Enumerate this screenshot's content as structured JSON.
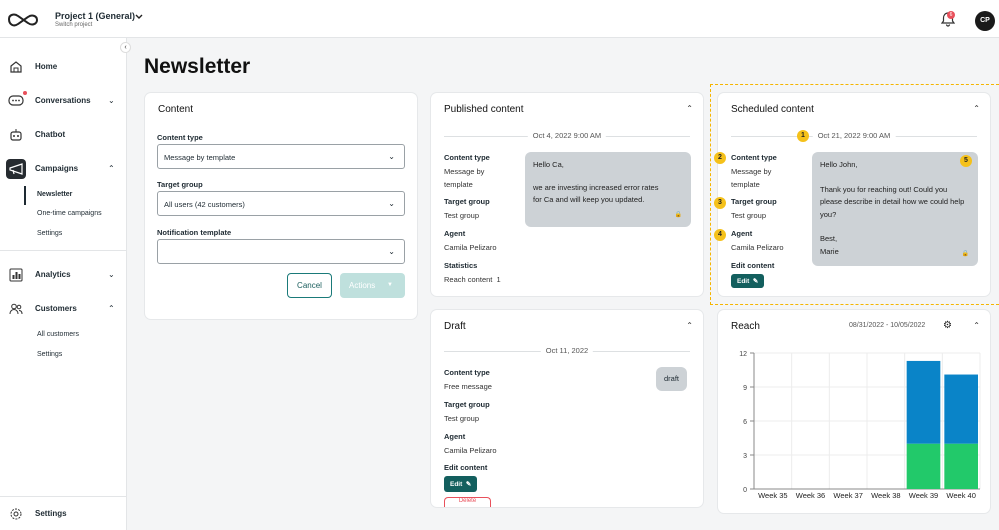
{
  "topbar": {
    "project_name": "Project 1 (General)",
    "project_sub": "Switch project",
    "notification_count": "6",
    "user_initials": "CP"
  },
  "sidebar": {
    "items": [
      {
        "label": "Home",
        "icon": "home-icon"
      },
      {
        "label": "Conversations",
        "icon": "chat-bubble-icon"
      },
      {
        "label": "Chatbot",
        "icon": "robot-icon"
      },
      {
        "label": "Campaigns",
        "icon": "megaphone-icon"
      },
      {
        "label": "Analytics",
        "icon": "bar-chart-icon"
      },
      {
        "label": "Customers",
        "icon": "users-icon"
      }
    ],
    "campaign_sub": [
      "Newsletter",
      "One-time campaigns",
      "Settings"
    ],
    "customer_sub": [
      "All customers",
      "Settings"
    ],
    "bottom_settings": "Settings"
  },
  "page": {
    "title": "Newsletter"
  },
  "content_card": {
    "title": "Content",
    "content_type_label": "Content type",
    "content_type_value": "Message by template",
    "target_group_label": "Target group",
    "target_group_value": "All users (42 customers)",
    "notification_template_label": "Notification template",
    "notification_template_value": "",
    "cancel_label": "Cancel",
    "actions_label": "Actions"
  },
  "published": {
    "title": "Published content",
    "date": "Oct 4, 2022 9:00 AM",
    "content_type_label": "Content type",
    "content_type_value": "Message by template",
    "target_group_label": "Target group",
    "target_group_value": "Test group",
    "agent_label": "Agent",
    "agent_value": "Camila Pelizaro",
    "statistics_label": "Statistics",
    "reach_label": "Reach content",
    "reach_value": "1",
    "message_lines": [
      "Hello Ca,",
      "",
      "we are investing increased error rates for Ca and will keep you updated."
    ]
  },
  "scheduled": {
    "title": "Scheduled content",
    "date": "Oct 21, 2022 9:00 AM",
    "content_type_label": "Content type",
    "content_type_value": "Message by template",
    "target_group_label": "Target group",
    "target_group_value": "Test group",
    "agent_label": "Agent",
    "agent_value": "Camila Pelizaro",
    "edit_content_label": "Edit content",
    "edit_label": "Edit",
    "markers": [
      "1",
      "2",
      "3",
      "4",
      "5"
    ],
    "message": {
      "greeting": "Hello John,",
      "body": "Thank you for reaching out! Could you please describe in detail how we could help you?",
      "closing": "Best,",
      "signature": "Marie"
    }
  },
  "draft": {
    "title": "Draft",
    "date": "Oct 11, 2022",
    "content_type_label": "Content type",
    "content_type_value": "Free message",
    "target_group_label": "Target group",
    "target_group_value": "Test group",
    "agent_label": "Agent",
    "agent_value": "Camila Pelizaro",
    "edit_content_label": "Edit content",
    "edit_label": "Edit",
    "delete_label": "Delete",
    "chip": "draft"
  },
  "reach": {
    "title": "Reach",
    "date_range": "08/31/2022 - 10/05/2022"
  },
  "chart_data": {
    "type": "bar",
    "stacked": true,
    "categories": [
      "Week 35",
      "Week 36",
      "Week 37",
      "Week 38",
      "Week 39",
      "Week 40"
    ],
    "series": [
      {
        "values": [
          0,
          0,
          0,
          0,
          4,
          4
        ],
        "color": "#22c96a"
      },
      {
        "values": [
          0,
          0,
          0,
          0,
          7.3,
          6.1
        ],
        "color": "#0a84c8"
      }
    ],
    "yticks": [
      0,
      3,
      6,
      9,
      12
    ],
    "ylim": [
      0,
      12
    ],
    "grid": true
  },
  "colors": {
    "accent": "#135f5e",
    "highlight": "#f5c11a",
    "alert": "#e8505b"
  }
}
